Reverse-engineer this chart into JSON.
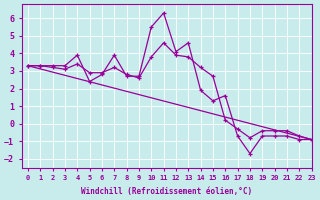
{
  "title": "Windchill (Refroidissement éolien,°C)",
  "bg_color": "#c8ecec",
  "line_color": "#990099",
  "xlim": [
    -0.5,
    23
  ],
  "ylim": [
    -2.5,
    6.8
  ],
  "yticks": [
    -2,
    -1,
    0,
    1,
    2,
    3,
    4,
    5,
    6
  ],
  "xticks": [
    0,
    1,
    2,
    3,
    4,
    5,
    6,
    7,
    8,
    9,
    10,
    11,
    12,
    13,
    14,
    15,
    16,
    17,
    18,
    19,
    20,
    21,
    22,
    23
  ],
  "series_main": [
    3.3,
    3.3,
    3.3,
    3.3,
    3.9,
    2.4,
    2.8,
    3.9,
    2.7,
    2.7,
    5.5,
    6.3,
    4.1,
    4.6,
    1.9,
    1.3,
    1.6,
    -0.7,
    -1.7,
    -0.7,
    -0.7,
    -0.7,
    -0.9,
    -0.9
  ],
  "series_smooth1": [
    3.3,
    3.3,
    3.2,
    3.1,
    3.4,
    2.9,
    2.9,
    3.2,
    2.8,
    2.6,
    3.8,
    4.6,
    3.9,
    3.8,
    3.2,
    2.7,
    0.2,
    -0.3,
    -0.8,
    -0.4,
    -0.4,
    -0.4,
    -0.7,
    -0.9
  ],
  "trend_start": 3.3,
  "trend_end": -0.9,
  "figsize": [
    3.2,
    2.0
  ],
  "dpi": 100
}
